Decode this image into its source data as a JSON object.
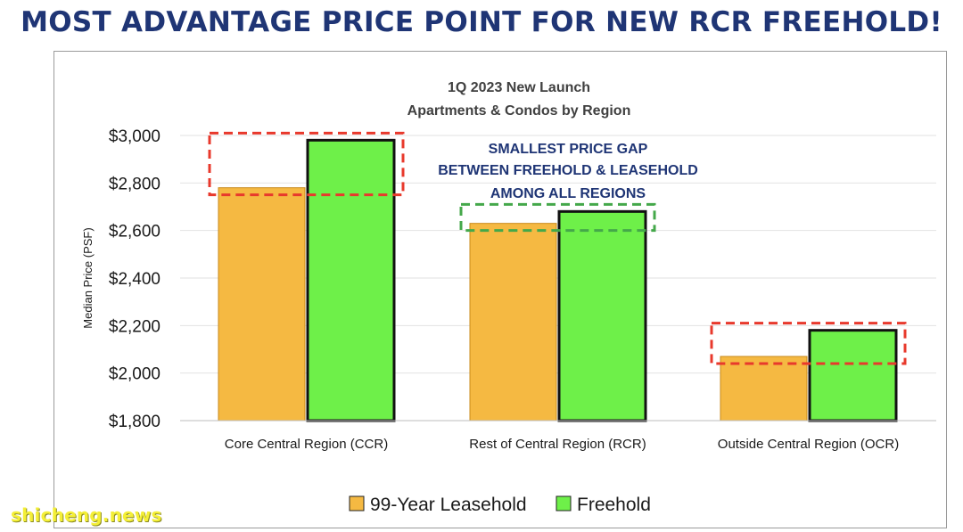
{
  "headline": "MOST ADVANTAGE PRICE POINT FOR NEW RCR FREEHOLD!",
  "watermark": "shicheng.news",
  "chart_data": {
    "type": "bar",
    "title": [
      "1Q 2023 New Launch",
      "Apartments & Condos by Region"
    ],
    "ylabel": "Median Price (PSF)",
    "xlabel": "",
    "ylim": [
      1800,
      3000
    ],
    "yticks": [
      "$1,800",
      "$2,000",
      "$2,200",
      "$2,400",
      "$2,600",
      "$2,800",
      "$3,000"
    ],
    "ytick_values": [
      1800,
      2000,
      2200,
      2400,
      2600,
      2800,
      3000
    ],
    "categories": [
      "Core Central Region (CCR)",
      "Rest of Central Region (RCR)",
      "Outside Central Region (OCR)"
    ],
    "series": [
      {
        "name": "99-Year Leasehold",
        "color": "#f5b942",
        "values": [
          2780,
          2630,
          2070
        ]
      },
      {
        "name": "Freehold",
        "color": "#6ef049",
        "values": [
          2980,
          2680,
          2180
        ]
      }
    ],
    "annotation": [
      "SMALLEST PRICE GAP",
      "BETWEEN FREEHOLD & LEASEHOLD",
      "AMONG ALL REGIONS"
    ],
    "highlight_colors": [
      "#e8392c",
      "#44a84a",
      "#e8392c"
    ],
    "grid": true,
    "legend_position": "bottom-center"
  }
}
